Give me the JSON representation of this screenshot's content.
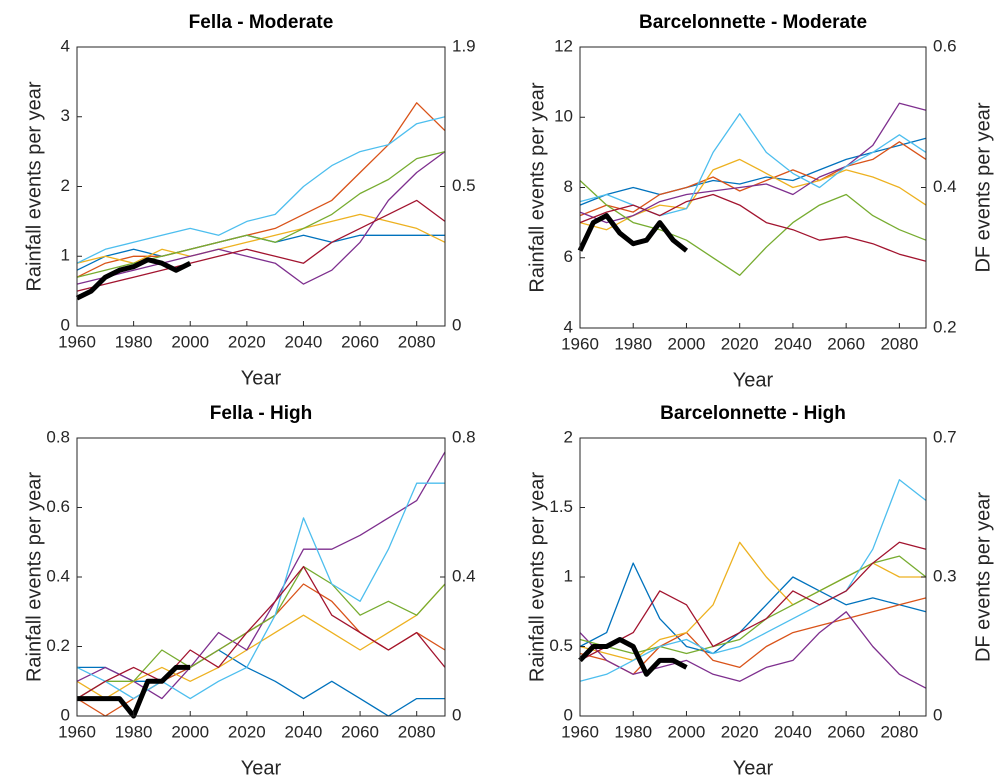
{
  "chart_data": [
    {
      "type": "line",
      "title": "Fella - Moderate",
      "xlabel": "Year",
      "ylabel": "Rainfall events per year",
      "x": [
        1960,
        1970,
        1980,
        1990,
        2000,
        2010,
        2020,
        2030,
        2040,
        2050,
        2060,
        2070,
        2080,
        2090
      ],
      "xlim": [
        1960,
        2090
      ],
      "xticks": [
        1960,
        1980,
        2000,
        2020,
        2040,
        2060,
        2080
      ],
      "ylim": [
        0,
        4
      ],
      "yticks": [
        0,
        1,
        2,
        3,
        4
      ],
      "y2ticks": [
        0,
        0.5,
        1.9
      ],
      "series": [
        {
          "color": "#0072BD",
          "values": [
            0.8,
            1.0,
            1.1,
            1.0,
            1.1,
            1.2,
            1.3,
            1.2,
            1.3,
            1.2,
            1.3,
            1.3,
            1.3,
            1.3
          ]
        },
        {
          "color": "#D95319",
          "values": [
            0.7,
            0.9,
            1.0,
            1.0,
            1.1,
            1.2,
            1.3,
            1.4,
            1.6,
            1.8,
            2.2,
            2.6,
            3.2,
            2.8
          ]
        },
        {
          "color": "#EDB120",
          "values": [
            0.9,
            1.0,
            0.9,
            1.1,
            1.0,
            1.1,
            1.2,
            1.3,
            1.4,
            1.5,
            1.6,
            1.5,
            1.4,
            1.2
          ]
        },
        {
          "color": "#7E2F8E",
          "values": [
            0.6,
            0.7,
            0.8,
            0.9,
            1.0,
            1.1,
            1.0,
            0.9,
            0.6,
            0.8,
            1.2,
            1.8,
            2.2,
            2.5
          ]
        },
        {
          "color": "#77AC30",
          "values": [
            0.7,
            0.8,
            0.9,
            1.0,
            1.1,
            1.2,
            1.3,
            1.2,
            1.4,
            1.6,
            1.9,
            2.1,
            2.4,
            2.5
          ]
        },
        {
          "color": "#4DBEEE",
          "values": [
            0.9,
            1.1,
            1.2,
            1.3,
            1.4,
            1.3,
            1.5,
            1.6,
            2.0,
            2.3,
            2.5,
            2.6,
            2.9,
            3.0
          ]
        },
        {
          "color": "#A2142F",
          "values": [
            0.5,
            0.6,
            0.7,
            0.8,
            0.9,
            1.0,
            1.1,
            1.0,
            0.9,
            1.2,
            1.4,
            1.6,
            1.8,
            1.5
          ]
        },
        {
          "color": "#000000",
          "width": 5,
          "x": [
            1960,
            1965,
            1970,
            1975,
            1980,
            1985,
            1990,
            1995,
            2000
          ],
          "values": [
            0.4,
            0.5,
            0.7,
            0.8,
            0.85,
            0.95,
            0.9,
            0.8,
            0.9
          ]
        }
      ]
    },
    {
      "type": "line",
      "title": "Barcelonnette - Moderate",
      "xlabel": "Year",
      "ylabel": "Rainfall events per year",
      "y2label": "DF events per year",
      "x": [
        1960,
        1970,
        1980,
        1990,
        2000,
        2010,
        2020,
        2030,
        2040,
        2050,
        2060,
        2070,
        2080,
        2090
      ],
      "xlim": [
        1960,
        2090
      ],
      "xticks": [
        1960,
        1980,
        2000,
        2020,
        2040,
        2060,
        2080
      ],
      "ylim": [
        4,
        12
      ],
      "yticks": [
        4,
        6,
        8,
        10,
        12
      ],
      "y2ticks": [
        0.2,
        0.4,
        0.6
      ],
      "series": [
        {
          "color": "#0072BD",
          "values": [
            7.5,
            7.8,
            8.0,
            7.8,
            8.0,
            8.2,
            8.1,
            8.3,
            8.2,
            8.5,
            8.8,
            9.0,
            9.2,
            9.4
          ]
        },
        {
          "color": "#D95319",
          "values": [
            7.2,
            7.5,
            7.3,
            7.8,
            8.0,
            8.3,
            7.9,
            8.2,
            8.5,
            8.2,
            8.6,
            8.8,
            9.3,
            8.8
          ]
        },
        {
          "color": "#EDB120",
          "values": [
            7.0,
            6.8,
            7.2,
            7.5,
            7.4,
            8.5,
            8.8,
            8.4,
            8.0,
            8.2,
            8.5,
            8.3,
            8.0,
            7.5
          ]
        },
        {
          "color": "#7E2F8E",
          "values": [
            7.3,
            7.0,
            7.2,
            7.6,
            7.8,
            7.9,
            8.0,
            8.1,
            7.8,
            8.3,
            8.6,
            9.2,
            10.4,
            10.2
          ]
        },
        {
          "color": "#77AC30",
          "values": [
            8.2,
            7.5,
            7.0,
            6.8,
            6.5,
            6.0,
            5.5,
            6.3,
            7.0,
            7.5,
            7.8,
            7.2,
            6.8,
            6.5
          ]
        },
        {
          "color": "#4DBEEE",
          "values": [
            7.6,
            7.8,
            7.5,
            7.2,
            7.4,
            9.0,
            10.1,
            9.0,
            8.4,
            8.0,
            8.6,
            9.0,
            9.5,
            9.0
          ]
        },
        {
          "color": "#A2142F",
          "values": [
            7.0,
            7.3,
            7.5,
            7.2,
            7.6,
            7.8,
            7.5,
            7.0,
            6.8,
            6.5,
            6.6,
            6.4,
            6.1,
            5.9
          ]
        },
        {
          "color": "#000000",
          "width": 5,
          "x": [
            1960,
            1965,
            1970,
            1975,
            1980,
            1985,
            1990,
            1995,
            2000
          ],
          "values": [
            6.2,
            7.0,
            7.2,
            6.7,
            6.4,
            6.5,
            7.0,
            6.5,
            6.2
          ]
        }
      ]
    },
    {
      "type": "line",
      "title": "Fella - High",
      "xlabel": "Year",
      "ylabel": "Rainfall events per year",
      "x": [
        1960,
        1970,
        1980,
        1990,
        2000,
        2010,
        2020,
        2030,
        2040,
        2050,
        2060,
        2070,
        2080,
        2090
      ],
      "xlim": [
        1960,
        2090
      ],
      "xticks": [
        1960,
        1980,
        2000,
        2020,
        2040,
        2060,
        2080
      ],
      "ylim": [
        0,
        0.8
      ],
      "yticks": [
        0,
        0.2,
        0.4,
        0.6,
        0.8
      ],
      "y2ticks": [
        0,
        0.4,
        0.8
      ],
      "series": [
        {
          "color": "#0072BD",
          "values": [
            0.14,
            0.14,
            0.1,
            0.1,
            0.14,
            0.19,
            0.14,
            0.1,
            0.05,
            0.1,
            0.05,
            0,
            0.05,
            0.05
          ]
        },
        {
          "color": "#D95319",
          "values": [
            0.05,
            0,
            0.05,
            0.1,
            0.14,
            0.19,
            0.24,
            0.29,
            0.38,
            0.33,
            0.24,
            0.19,
            0.24,
            0.19
          ]
        },
        {
          "color": "#EDB120",
          "values": [
            0.1,
            0.05,
            0.1,
            0.14,
            0.1,
            0.14,
            0.19,
            0.24,
            0.29,
            0.24,
            0.19,
            0.24,
            0.29,
            0.38
          ]
        },
        {
          "color": "#7E2F8E",
          "values": [
            0.1,
            0.14,
            0.1,
            0.05,
            0.14,
            0.24,
            0.19,
            0.33,
            0.48,
            0.48,
            0.52,
            0.57,
            0.62,
            0.76
          ]
        },
        {
          "color": "#77AC30",
          "values": [
            0.05,
            0.1,
            0.1,
            0.19,
            0.14,
            0.19,
            0.24,
            0.29,
            0.43,
            0.38,
            0.29,
            0.33,
            0.29,
            0.38
          ]
        },
        {
          "color": "#4DBEEE",
          "values": [
            0.14,
            0.1,
            0.05,
            0.1,
            0.05,
            0.1,
            0.14,
            0.29,
            0.57,
            0.38,
            0.33,
            0.48,
            0.67,
            0.67
          ]
        },
        {
          "color": "#A2142F",
          "values": [
            0.05,
            0.1,
            0.14,
            0.1,
            0.19,
            0.14,
            0.24,
            0.33,
            0.43,
            0.29,
            0.24,
            0.19,
            0.24,
            0.14
          ]
        },
        {
          "color": "#000000",
          "width": 5,
          "x": [
            1960,
            1965,
            1970,
            1975,
            1980,
            1985,
            1990,
            1995,
            2000
          ],
          "values": [
            0.05,
            0.05,
            0.05,
            0.05,
            0,
            0.1,
            0.1,
            0.14,
            0.14
          ]
        }
      ]
    },
    {
      "type": "line",
      "title": "Barcelonnette - High",
      "xlabel": "Year",
      "ylabel": "Rainfall events per year",
      "y2label": "DF events per year",
      "x": [
        1960,
        1970,
        1980,
        1990,
        2000,
        2010,
        2020,
        2030,
        2040,
        2050,
        2060,
        2070,
        2080,
        2090
      ],
      "xlim": [
        1960,
        2090
      ],
      "xticks": [
        1960,
        1980,
        2000,
        2020,
        2040,
        2060,
        2080
      ],
      "ylim": [
        0,
        2
      ],
      "yticks": [
        0,
        0.5,
        1,
        1.5,
        2
      ],
      "y2ticks": [
        0,
        0.3,
        0.7
      ],
      "series": [
        {
          "color": "#0072BD",
          "values": [
            0.5,
            0.6,
            1.1,
            0.7,
            0.5,
            0.45,
            0.6,
            0.8,
            1.0,
            0.9,
            0.8,
            0.85,
            0.8,
            0.75
          ]
        },
        {
          "color": "#D95319",
          "values": [
            0.45,
            0.4,
            0.3,
            0.5,
            0.6,
            0.4,
            0.35,
            0.5,
            0.6,
            0.65,
            0.7,
            0.75,
            0.8,
            0.85
          ]
        },
        {
          "color": "#EDB120",
          "values": [
            0.5,
            0.45,
            0.4,
            0.55,
            0.6,
            0.8,
            1.25,
            1.0,
            0.8,
            0.9,
            1.0,
            1.1,
            1.0,
            1.0
          ]
        },
        {
          "color": "#7E2F8E",
          "values": [
            0.6,
            0.4,
            0.3,
            0.35,
            0.4,
            0.3,
            0.25,
            0.35,
            0.4,
            0.6,
            0.75,
            0.5,
            0.3,
            0.2
          ]
        },
        {
          "color": "#77AC30",
          "values": [
            0.55,
            0.5,
            0.45,
            0.5,
            0.45,
            0.5,
            0.55,
            0.7,
            0.8,
            0.9,
            1.0,
            1.1,
            1.15,
            1.0
          ]
        },
        {
          "color": "#4DBEEE",
          "values": [
            0.25,
            0.3,
            0.4,
            0.5,
            0.55,
            0.45,
            0.5,
            0.6,
            0.7,
            0.8,
            0.9,
            1.2,
            1.7,
            1.55
          ]
        },
        {
          "color": "#A2142F",
          "values": [
            0.4,
            0.5,
            0.6,
            0.9,
            0.8,
            0.5,
            0.6,
            0.7,
            0.9,
            0.8,
            0.9,
            1.1,
            1.25,
            1.2
          ]
        },
        {
          "color": "#000000",
          "width": 5,
          "x": [
            1960,
            1965,
            1970,
            1975,
            1980,
            1985,
            1990,
            1995,
            2000
          ],
          "values": [
            0.4,
            0.5,
            0.5,
            0.55,
            0.5,
            0.3,
            0.4,
            0.4,
            0.35
          ]
        }
      ]
    }
  ]
}
